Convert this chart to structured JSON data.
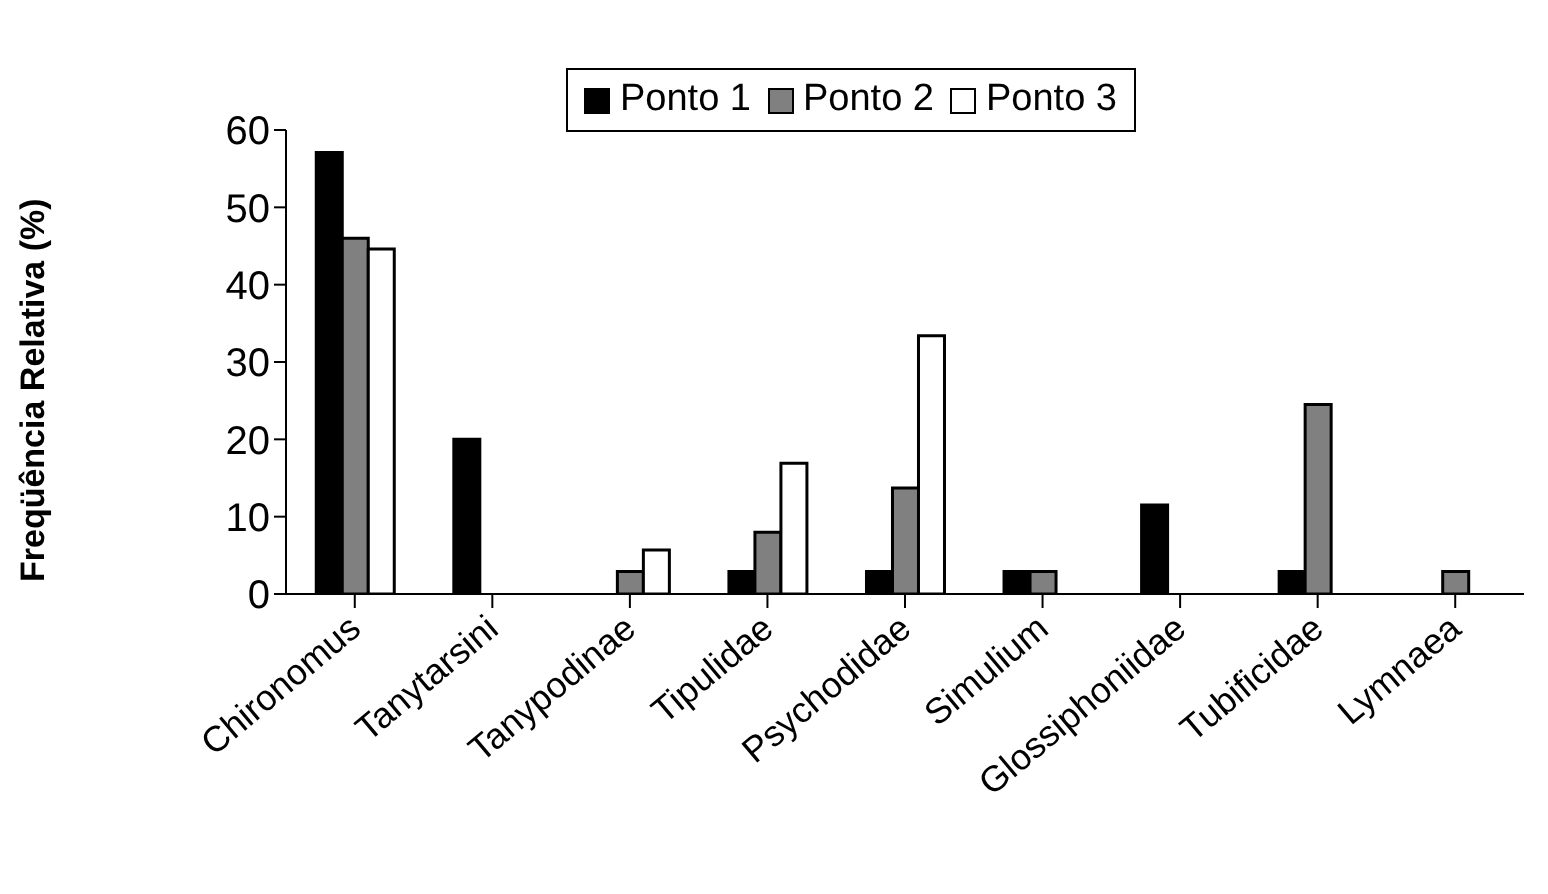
{
  "chart_data": {
    "type": "bar",
    "ylabel": "Freqüência Relativa (%)",
    "categories": [
      "Chironomus",
      "Tanytarsini",
      "Tanypodinae",
      "Tipulidae",
      "Psychodidae",
      "Simulium",
      "Glossiphoniidae",
      "Tubificidae",
      "Lymnaea"
    ],
    "series": [
      {
        "name": "Ponto 1",
        "color": "#000000",
        "values": [
          57.1,
          20,
          0,
          2.9,
          2.9,
          2.9,
          11.5,
          2.9,
          0
        ]
      },
      {
        "name": "Ponto 2",
        "color": "#808080",
        "values": [
          46,
          0,
          2.9,
          8,
          13.7,
          2.9,
          0,
          24.5,
          2.9
        ]
      },
      {
        "name": "Ponto 3",
        "color": "#ffffff",
        "values": [
          44.6,
          0,
          5.7,
          16.9,
          33.4,
          0,
          0,
          0,
          0
        ]
      }
    ],
    "ylim": [
      0,
      60
    ],
    "yticks": [
      0,
      10,
      20,
      30,
      40,
      50,
      60
    ],
    "grid": false,
    "legend": "top"
  }
}
